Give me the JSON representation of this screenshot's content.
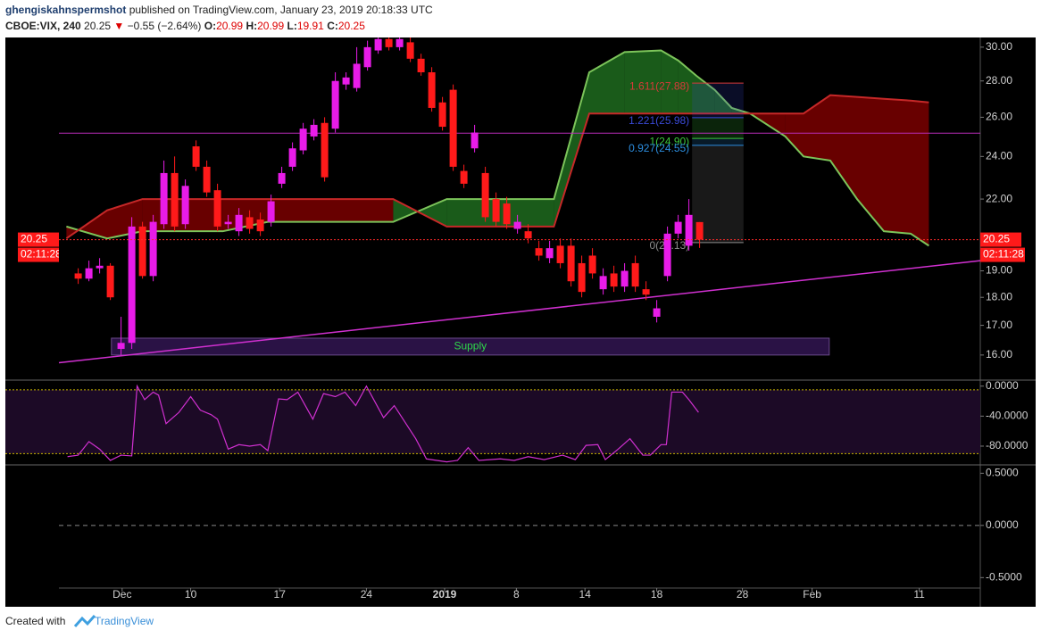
{
  "header": {
    "author": "ghengiskahnspermshot",
    "published": "published on TradingView.com, January 23, 2019 20:18:33 UTC",
    "symbol": "CBOE:VIX, 240",
    "price": 20.25,
    "arrow": "▼",
    "change": "−0.55 (−2.64%)",
    "open_label": "O:",
    "open": 20.99,
    "high_label": "H:",
    "high": 20.99,
    "low_label": "L:",
    "low": 19.91,
    "close_label": "C:",
    "close": 20.25
  },
  "chart_data": [
    {
      "type": "candlestick",
      "log_scale": true,
      "up_color": "#e81ce8",
      "down_color": "#ff1a1a",
      "x": [
        1,
        2,
        3,
        4,
        5,
        6,
        7,
        8,
        9,
        10,
        11,
        12,
        13,
        14,
        15,
        16,
        17,
        18,
        19,
        20,
        21,
        22,
        23,
        24,
        25,
        26,
        27,
        28,
        29,
        30,
        31,
        32,
        33,
        34,
        35,
        36,
        37,
        38,
        39,
        40,
        41,
        42,
        43,
        44,
        45,
        46,
        47,
        48,
        49,
        50,
        51,
        52,
        53,
        54,
        55,
        56,
        57,
        58,
        59
      ],
      "open": [
        18.9,
        18.7,
        19.1,
        19.2,
        16.2,
        16.4,
        20.8,
        18.8,
        20.9,
        23.2,
        20.9,
        24.5,
        23.5,
        22.4,
        20.9,
        20.6,
        21.2,
        21.1,
        21.0,
        22.7,
        23.5,
        24.3,
        25.0,
        25.7,
        25.4,
        27.8,
        27.6,
        28.8,
        29.8,
        30.5,
        30.0,
        30.3,
        29.3,
        28.5,
        26.8,
        27.5,
        23.3,
        24.4,
        23.2,
        22.0,
        21.8,
        20.7,
        20.6,
        19.9,
        19.5,
        20.0,
        20.0,
        19.3,
        19.6,
        18.3,
        18.9,
        18.4,
        19.3,
        18.3,
        17.3,
        18.8,
        20.5,
        20.0,
        20.99
      ],
      "high": [
        19.1,
        19.4,
        19.5,
        19.3,
        17.3,
        21.2,
        21.0,
        21.3,
        23.8,
        24.0,
        22.9,
        24.8,
        23.8,
        22.7,
        21.3,
        21.6,
        21.5,
        21.4,
        22.2,
        23.5,
        24.7,
        25.7,
        25.9,
        26.0,
        28.5,
        28.5,
        30.0,
        30.4,
        30.6,
        30.6,
        30.6,
        30.6,
        29.6,
        28.8,
        27.1,
        27.8,
        23.6,
        25.6,
        23.5,
        22.3,
        22.1,
        21.3,
        20.9,
        20.2,
        20.2,
        20.3,
        20.3,
        19.6,
        19.9,
        19.1,
        19.2,
        19.3,
        19.6,
        18.6,
        17.9,
        20.8,
        21.3,
        22.0,
        20.99
      ],
      "low": [
        18.5,
        18.6,
        18.9,
        17.9,
        16.0,
        16.2,
        18.7,
        18.6,
        20.7,
        20.6,
        20.7,
        23.3,
        22.1,
        20.6,
        20.7,
        20.4,
        20.5,
        20.4,
        20.8,
        22.5,
        23.3,
        24.1,
        24.8,
        22.8,
        25.2,
        27.5,
        27.4,
        28.6,
        29.6,
        29.8,
        29.8,
        29.1,
        28.3,
        26.3,
        25.3,
        23.3,
        22.5,
        24.2,
        21.0,
        20.8,
        20.7,
        20.5,
        20.1,
        19.4,
        19.3,
        19.1,
        18.4,
        18.0,
        18.7,
        18.1,
        18.2,
        18.2,
        18.2,
        17.9,
        17.1,
        18.6,
        20.3,
        19.8,
        19.91
      ],
      "close": [
        18.7,
        19.1,
        19.2,
        18.0,
        16.4,
        20.8,
        18.8,
        21.0,
        23.2,
        20.8,
        22.6,
        23.5,
        22.3,
        20.8,
        21.0,
        21.3,
        20.7,
        20.6,
        21.9,
        23.2,
        24.4,
        25.4,
        25.6,
        23.0,
        28.0,
        28.2,
        29.0,
        30.0,
        30.5,
        30.0,
        30.5,
        29.3,
        28.5,
        26.5,
        25.5,
        23.5,
        22.7,
        25.2,
        21.2,
        21.0,
        20.9,
        21.0,
        20.3,
        19.6,
        19.9,
        19.3,
        18.6,
        18.2,
        18.9,
        18.8,
        18.4,
        19.0,
        18.4,
        18.1,
        17.6,
        20.5,
        21.0,
        21.3,
        20.25
      ],
      "xlim": [
        -0.8,
        85.2
      ],
      "xticks": [
        {
          "value": 5.1,
          "label": "Dec"
        },
        {
          "value": 11.5,
          "label": "10"
        },
        {
          "value": 19.8,
          "label": "17"
        },
        {
          "value": 27.9,
          "label": "24"
        },
        {
          "value": 35.2,
          "label": "2019"
        },
        {
          "value": 41.9,
          "label": "8"
        },
        {
          "value": 48.3,
          "label": "14"
        },
        {
          "value": 55.0,
          "label": "18"
        },
        {
          "value": 63.0,
          "label": "28"
        },
        {
          "value": 69.5,
          "label": "Feb"
        },
        {
          "value": 79.5,
          "label": "11"
        }
      ],
      "ylim": [
        15.2,
        30.6
      ],
      "yticks": [
        {
          "value": 30,
          "label": "30.00"
        },
        {
          "value": 28,
          "label": "28.00"
        },
        {
          "value": 26,
          "label": "26.00"
        },
        {
          "value": 24,
          "label": "24.00"
        },
        {
          "value": 22,
          "label": "22.00"
        },
        {
          "value": 19,
          "label": "19.00"
        },
        {
          "value": 18,
          "label": "18.00"
        },
        {
          "value": 17,
          "label": "17.00"
        },
        {
          "value": 16,
          "label": "16.00"
        }
      ],
      "cloud": {
        "x": [
          -0.1,
          3.7,
          7.0,
          14.5,
          18.7,
          30.4,
          35.4,
          40.4,
          45.4,
          48.7,
          52.0,
          55.4,
          57.0,
          58.7,
          60.4,
          62.0,
          63.7,
          67.0,
          68.7,
          71.2,
          73.7,
          76.2,
          78.7,
          80.4
        ],
        "span_a": [
          20.8,
          20.3,
          20.6,
          20.6,
          21.0,
          21.0,
          22.0,
          22.0,
          22.0,
          28.5,
          29.7,
          29.8,
          29.2,
          28.3,
          27.5,
          26.5,
          26.2,
          25.0,
          24.0,
          23.8,
          22.0,
          20.6,
          20.5,
          20.0
        ],
        "span_b": [
          20.3,
          21.5,
          22.0,
          22.0,
          22.0,
          22.0,
          20.8,
          20.8,
          20.8,
          26.2,
          26.2,
          26.2,
          26.2,
          26.2,
          26.2,
          26.2,
          26.2,
          26.2,
          26.2,
          27.2,
          27.1,
          27.0,
          26.9,
          26.8
        ],
        "span_a_color": "#7cc45a",
        "span_b_color": "#c62828",
        "bull_fill": "#1f6b1f",
        "bear_fill": "#7a0000"
      },
      "horizontal_line": {
        "value": 25.17,
        "color": "#b82cb8"
      },
      "trend_line": {
        "x": [
          -0.8,
          85.2
        ],
        "y": [
          15.75,
          19.4
        ],
        "color": "#d030d0"
      },
      "fib_x": [
        58.3,
        63.1
      ],
      "fib": [
        {
          "value": 27.88,
          "label": "1.611(27.88)",
          "color": "#d83a3a"
        },
        {
          "value": 25.98,
          "label": "1.221(25.98)",
          "color": "#3a4ad8"
        },
        {
          "value": 24.9,
          "label": "1(24.90)",
          "color": "#3cc83c"
        },
        {
          "value": 24.55,
          "label": "0.927(24.55)",
          "color": "#2c8ee0"
        },
        {
          "value": 20.13,
          "label": "0(20.13)",
          "color": "#8c8c8c"
        }
      ],
      "supply": {
        "label": "Supply",
        "x": [
          4.1,
          71.1
        ],
        "y": [
          16.0,
          16.56
        ],
        "color": "#2ed84a"
      },
      "last_price": 20.25,
      "countdown": "02:11:28"
    },
    {
      "type": "line",
      "x": [
        0.0,
        1.0,
        2.0,
        3.0,
        4.0,
        5.0,
        6.0,
        6.5,
        7.2,
        8.0,
        8.5,
        9.2,
        10.4,
        11.5,
        12.4,
        13.4,
        14.0,
        15.0,
        16.0,
        17.0,
        18.0,
        18.7,
        19.7,
        20.5,
        21.5,
        22.9,
        23.9,
        25.0,
        25.9,
        26.9,
        27.9,
        29.5,
        30.5,
        32.5,
        33.5,
        35.4,
        36.4,
        37.4,
        38.4,
        40.4,
        41.7,
        43.0,
        44.5,
        46.2,
        47.4,
        48.4,
        49.5,
        50.2,
        51.4,
        52.5,
        53.7,
        54.4,
        55.4,
        55.9,
        56.4,
        57.4,
        58.0,
        58.9
      ],
      "values": [
        -94,
        -92,
        -74,
        -84,
        -99,
        -92,
        -93,
        0,
        -18,
        -8,
        -12,
        -50,
        -35,
        -14,
        -32,
        -38,
        -44,
        -84,
        -78,
        -80,
        -78,
        -86,
        -17,
        -18,
        -8,
        -44,
        -10,
        -14,
        -8,
        -26,
        0,
        -42,
        -26,
        -70,
        -97,
        -101,
        -99,
        -82,
        -99,
        -97,
        -99,
        -94,
        -98,
        -92,
        -98,
        -79,
        -78,
        -98,
        -84,
        -70,
        -92,
        -92,
        -78,
        -78,
        -8,
        -8,
        -18,
        -35
      ],
      "color": "#d030d0",
      "band": [
        -5,
        -90
      ],
      "band_color": "#c8b400",
      "band_fill": "#1c0a26",
      "xlim": [
        -0.8,
        85.2
      ],
      "ylim": [
        -105,
        8
      ],
      "yticks": [
        {
          "value": 0,
          "label": "0.0000"
        },
        {
          "value": -40,
          "label": "-40.0000"
        },
        {
          "value": -80,
          "label": "-80.0000"
        }
      ]
    },
    {
      "type": "line",
      "x": [],
      "values": [],
      "xlim": [
        -0.8,
        85.2
      ],
      "ylim": [
        -0.6,
        0.58
      ],
      "yticks": [
        {
          "value": 0.5,
          "label": "0.5000"
        },
        {
          "value": 0,
          "label": "0.0000"
        },
        {
          "value": -0.5,
          "label": "-0.5000"
        }
      ],
      "zero_line": true
    }
  ],
  "footer": {
    "created": "Created with",
    "brand": "TradingView"
  }
}
